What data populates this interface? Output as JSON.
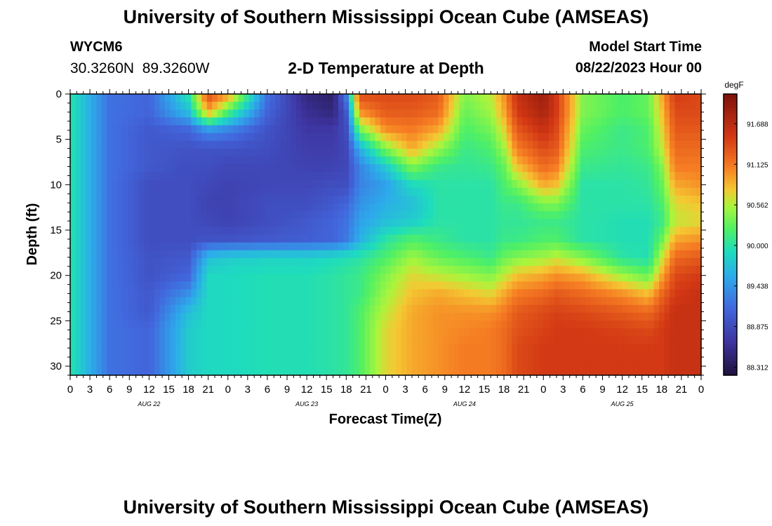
{
  "header": {
    "title": "University of Southern Mississippi Ocean Cube (AMSEAS)",
    "station_id": "WYCM6",
    "coordinates": "30.3260N  89.3260W",
    "subtitle": "2-D Temperature at Depth",
    "model_start_label": "Model Start Time",
    "model_start_value": "08/22/2023 Hour 00"
  },
  "footer": {
    "title": "University of Southern Mississippi Ocean Cube (AMSEAS)"
  },
  "chart_data": {
    "type": "heatmap",
    "title": "2-D Temperature at Depth",
    "xlabel": "Forecast Time(Z)",
    "ylabel": "Depth (ft)",
    "x_tick_labels": [
      "0",
      "3",
      "6",
      "9",
      "12",
      "15",
      "18",
      "21",
      "0",
      "3",
      "6",
      "9",
      "12",
      "15",
      "18",
      "21",
      "0",
      "3",
      "6",
      "9",
      "12",
      "15",
      "18",
      "21",
      "0",
      "3",
      "6",
      "9",
      "12",
      "15",
      "18",
      "21",
      "0"
    ],
    "date_labels": [
      {
        "label": "AUG 22",
        "hour": 12
      },
      {
        "label": "AUG 23",
        "hour": 36
      },
      {
        "label": "AUG 24",
        "hour": 60
      },
      {
        "label": "AUG 25",
        "hour": 84
      }
    ],
    "xlim": [
      0,
      96
    ],
    "y_ticks": [
      0,
      5,
      10,
      15,
      20,
      25,
      30
    ],
    "ylim": [
      0,
      31
    ],
    "colorbar": {
      "unit": "degF",
      "labels": [
        "91.688",
        "91.125",
        "90.562",
        "90.000",
        "89.438",
        "88.875",
        "88.312"
      ],
      "range": [
        88.2,
        92.1
      ]
    },
    "time_hours": [
      0,
      6,
      12,
      18,
      21,
      24,
      30,
      36,
      40,
      42,
      44,
      48,
      52,
      56,
      60,
      64,
      66,
      68,
      72,
      74,
      78,
      84,
      88,
      90,
      92,
      96
    ],
    "depths_ft": [
      0,
      2,
      4,
      6,
      8,
      10,
      12,
      14,
      16,
      18,
      20,
      22,
      24,
      26,
      28,
      30,
      31
    ],
    "temperature_degF": [
      [
        90.0,
        90.0,
        90.0,
        90.0,
        90.0,
        90.0,
        90.0,
        90.0,
        90.0,
        90.0,
        90.0,
        90.0,
        90.0,
        90.0,
        90.0,
        90.0,
        90.0
      ],
      [
        89.2,
        89.2,
        89.2,
        89.2,
        89.2,
        89.2,
        89.2,
        89.2,
        89.2,
        89.2,
        89.2,
        89.2,
        89.2,
        89.2,
        89.2,
        89.2,
        89.2
      ],
      [
        89.1,
        89.1,
        89.0,
        89.0,
        89.0,
        88.9,
        88.9,
        88.9,
        88.9,
        88.95,
        88.95,
        89.0,
        89.0,
        89.1,
        89.1,
        89.1,
        89.1
      ],
      [
        90.0,
        89.7,
        89.1,
        88.95,
        88.9,
        88.9,
        88.9,
        88.9,
        88.9,
        89.0,
        89.1,
        89.4,
        89.7,
        89.8,
        89.8,
        89.8,
        89.8
      ],
      [
        91.4,
        90.9,
        89.4,
        88.95,
        88.9,
        88.85,
        88.8,
        88.85,
        88.95,
        89.7,
        89.9,
        89.9,
        89.9,
        89.9,
        89.9,
        89.9,
        89.9
      ],
      [
        91.0,
        90.2,
        89.3,
        88.95,
        88.85,
        88.8,
        88.8,
        88.8,
        88.95,
        89.8,
        89.9,
        89.9,
        89.9,
        89.9,
        89.9,
        89.9,
        89.9
      ],
      [
        89.2,
        89.1,
        88.95,
        88.9,
        88.85,
        88.85,
        88.9,
        88.9,
        89.0,
        89.85,
        89.95,
        89.95,
        89.95,
        89.95,
        89.95,
        89.95,
        89.95
      ],
      [
        88.5,
        88.6,
        88.7,
        88.75,
        88.8,
        88.85,
        88.9,
        89.0,
        89.05,
        89.85,
        89.95,
        89.95,
        89.95,
        89.95,
        89.95,
        89.95,
        89.95
      ],
      [
        88.4,
        88.5,
        88.7,
        88.75,
        88.8,
        88.9,
        89.0,
        89.1,
        89.1,
        89.9,
        90.0,
        90.0,
        90.0,
        90.0,
        90.0,
        90.0,
        90.0
      ],
      [
        89.3,
        89.0,
        88.9,
        88.85,
        88.85,
        88.9,
        89.1,
        89.2,
        89.25,
        89.95,
        90.05,
        90.05,
        90.05,
        90.05,
        90.05,
        90.05,
        90.05
      ],
      [
        91.4,
        91.0,
        90.3,
        89.6,
        89.3,
        89.3,
        89.4,
        89.5,
        89.6,
        90.0,
        90.1,
        90.1,
        90.2,
        90.2,
        90.2,
        90.2,
        90.2
      ],
      [
        91.4,
        91.3,
        91.0,
        90.4,
        89.8,
        89.5,
        89.6,
        89.7,
        90.0,
        90.2,
        90.4,
        90.5,
        90.6,
        90.7,
        90.7,
        90.7,
        90.7
      ],
      [
        91.4,
        91.3,
        91.1,
        90.9,
        90.4,
        89.9,
        89.7,
        89.8,
        90.2,
        90.5,
        90.7,
        90.8,
        90.9,
        90.9,
        90.9,
        90.9,
        90.9
      ],
      [
        91.3,
        91.2,
        90.9,
        90.5,
        90.1,
        90.0,
        90.0,
        90.0,
        90.1,
        90.3,
        90.6,
        90.9,
        91.0,
        91.0,
        91.0,
        91.0,
        91.0
      ],
      [
        90.4,
        90.3,
        90.2,
        90.1,
        90.05,
        90.0,
        90.0,
        90.0,
        90.0,
        90.2,
        90.5,
        90.8,
        91.0,
        91.05,
        91.1,
        91.1,
        91.1
      ],
      [
        90.6,
        90.5,
        90.35,
        90.2,
        90.1,
        90.0,
        90.0,
        90.0,
        90.0,
        90.1,
        90.4,
        90.7,
        91.0,
        91.1,
        91.1,
        91.1,
        91.1
      ],
      [
        91.0,
        90.9,
        90.7,
        90.5,
        90.3,
        90.2,
        90.1,
        90.05,
        90.1,
        90.3,
        90.6,
        90.9,
        91.1,
        91.2,
        91.2,
        91.2,
        91.2
      ],
      [
        91.6,
        91.5,
        91.3,
        91.1,
        90.8,
        90.4,
        90.1,
        90.05,
        90.1,
        90.4,
        90.8,
        91.1,
        91.3,
        91.35,
        91.4,
        91.4,
        91.4
      ],
      [
        91.9,
        91.8,
        91.6,
        91.4,
        91.2,
        90.9,
        90.4,
        90.1,
        90.2,
        90.5,
        90.9,
        91.2,
        91.4,
        91.45,
        91.5,
        91.5,
        91.5
      ],
      [
        91.5,
        91.5,
        91.4,
        91.3,
        91.1,
        90.8,
        90.4,
        90.1,
        90.2,
        90.6,
        91.0,
        91.3,
        91.45,
        91.5,
        91.5,
        91.5,
        91.5
      ],
      [
        90.4,
        90.4,
        90.3,
        90.2,
        90.1,
        90.0,
        90.0,
        90.0,
        90.0,
        90.4,
        90.9,
        91.2,
        91.4,
        91.5,
        91.5,
        91.5,
        91.5
      ],
      [
        90.2,
        90.2,
        90.1,
        90.1,
        90.05,
        90.0,
        90.0,
        89.95,
        89.95,
        90.0,
        90.5,
        91.0,
        91.3,
        91.45,
        91.5,
        91.5,
        91.5
      ],
      [
        90.3,
        90.3,
        90.2,
        90.2,
        90.1,
        90.05,
        90.0,
        89.95,
        89.95,
        89.95,
        90.3,
        90.8,
        91.2,
        91.4,
        91.5,
        91.5,
        91.5
      ],
      [
        90.9,
        90.8,
        90.7,
        90.6,
        90.4,
        90.3,
        90.2,
        90.1,
        90.3,
        90.6,
        90.9,
        91.2,
        91.4,
        91.5,
        91.5,
        91.5,
        91.5
      ],
      [
        91.5,
        91.4,
        91.3,
        91.2,
        91.1,
        90.9,
        90.7,
        90.6,
        90.9,
        91.2,
        91.4,
        91.5,
        91.6,
        91.6,
        91.6,
        91.6,
        91.6
      ],
      [
        91.4,
        91.4,
        91.3,
        91.2,
        91.1,
        91.0,
        90.8,
        90.7,
        91.0,
        91.3,
        91.5,
        91.6,
        91.6,
        91.6,
        91.6,
        91.6,
        91.6
      ]
    ]
  }
}
